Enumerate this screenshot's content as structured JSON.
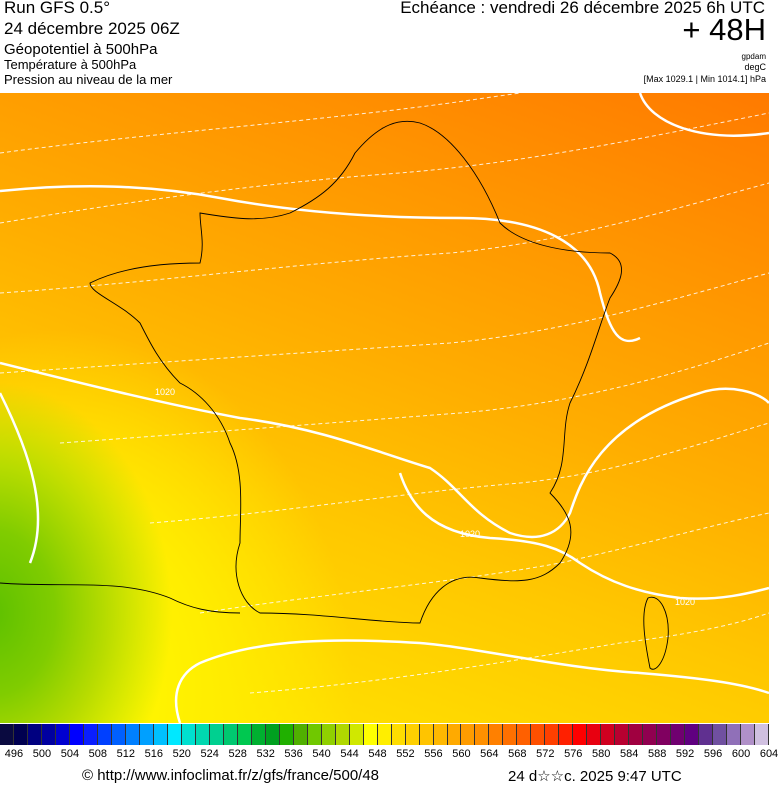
{
  "header": {
    "run": "Run GFS 0.5°",
    "run_date": "24 décembre 2025 06Z",
    "field1": "Géopotentiel à 500hPa",
    "field2": "Température à 500hPa",
    "field3": "Pression au niveau de la mer",
    "echeance": "Echéance : vendredi 26 décembre 2025 6h UTC",
    "lead": "+ 48H",
    "unit1": "gpdam",
    "unit2": "degC",
    "pressure_range": "[Max 1029.1 | Min 1014.1] hPa"
  },
  "map": {
    "contour_labels": [
      "1020",
      "1020",
      "1020"
    ]
  },
  "colorbar": {
    "labels": [
      "496",
      "500",
      "504",
      "508",
      "512",
      "516",
      "520",
      "524",
      "528",
      "532",
      "536",
      "540",
      "544",
      "548",
      "552",
      "556",
      "560",
      "564",
      "568",
      "572",
      "576",
      "580",
      "584",
      "588",
      "592",
      "596",
      "600",
      "604"
    ],
    "colors": [
      "#0a0a40",
      "#000050",
      "#000080",
      "#0000a0",
      "#0000d0",
      "#0000ff",
      "#0a1eff",
      "#0040ff",
      "#0060ff",
      "#0080ff",
      "#00a0ff",
      "#00c0ff",
      "#00e8ff",
      "#00e0d0",
      "#00d8b0",
      "#00d090",
      "#00c870",
      "#00c850",
      "#00b030",
      "#00a020",
      "#20b000",
      "#50b000",
      "#70c800",
      "#90d000",
      "#b0d800",
      "#d0e800",
      "#ffff00",
      "#ffee00",
      "#ffdd00",
      "#ffd000",
      "#ffc400",
      "#ffb800",
      "#ffaa00",
      "#ff9c00",
      "#ff9000",
      "#ff8000",
      "#ff7000",
      "#ff6000",
      "#ff5000",
      "#ff4000",
      "#ff2000",
      "#ff0000",
      "#e80010",
      "#d00020",
      "#b80030",
      "#a00040",
      "#900050",
      "#800060",
      "#700070",
      "#600080",
      "#603090",
      "#7050a0",
      "#9070b8",
      "#b090c8",
      "#d0c0e0"
    ]
  },
  "footer": {
    "url": "© http://www.infoclimat.fr/z/gfs/france/500/48",
    "generated": "24 d☆☆c. 2025  9:47 UTC"
  }
}
